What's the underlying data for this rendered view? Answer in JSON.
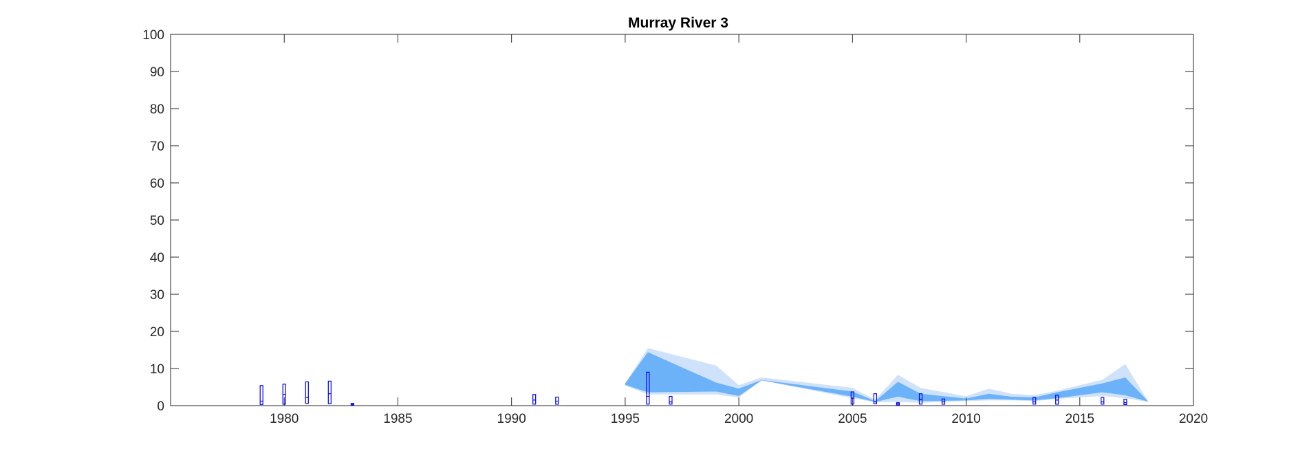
{
  "chart_data": {
    "type": "area",
    "title": "Murray River 3",
    "xlabel": "",
    "ylabel": "",
    "xlim": [
      1975,
      2020
    ],
    "ylim": [
      0,
      100
    ],
    "xticks": [
      1980,
      1985,
      1990,
      1995,
      2000,
      2005,
      2010,
      2015,
      2020
    ],
    "yticks": [
      0,
      10,
      20,
      30,
      40,
      50,
      60,
      70,
      80,
      90,
      100
    ],
    "grid": false,
    "legend": "none",
    "colors": {
      "outer_band": "#cfe2fb",
      "inner_band": "#6cb2f8",
      "boxes": "#0000ff",
      "axes": "#262626"
    },
    "bands": {
      "x": [
        1995,
        1996,
        1999,
        2000,
        2001,
        2005,
        2006,
        2007,
        2008,
        2010,
        2011,
        2012,
        2013,
        2014,
        2016,
        2017,
        2018
      ],
      "outer_upper": [
        6.0,
        15.5,
        10.8,
        5.5,
        7.6,
        4.8,
        1.6,
        8.3,
        4.8,
        2.5,
        4.6,
        3.2,
        2.8,
        4.0,
        7.0,
        11.2,
        1.2
      ],
      "outer_lower": [
        5.4,
        3.0,
        3.0,
        2.2,
        6.8,
        2.0,
        0.9,
        1.0,
        0.8,
        1.2,
        1.4,
        1.4,
        1.2,
        1.8,
        2.6,
        2.0,
        1.0
      ],
      "inner_upper": [
        6.0,
        14.4,
        6.2,
        4.6,
        6.9,
        3.8,
        1.2,
        6.4,
        3.2,
        1.9,
        3.2,
        2.4,
        2.2,
        3.6,
        6.0,
        7.6,
        1.2
      ],
      "inner_lower": [
        5.6,
        3.6,
        3.8,
        2.6,
        6.8,
        2.4,
        1.0,
        2.4,
        1.2,
        1.4,
        1.8,
        1.6,
        1.4,
        2.0,
        3.6,
        2.8,
        1.1
      ]
    },
    "boxes": [
      {
        "x": 1979,
        "low": 0.3,
        "median": 1.2,
        "high": 5.4
      },
      {
        "x": 1980,
        "low": 0.4,
        "median": 3.0,
        "high": 5.8
      },
      {
        "x": 1981,
        "low": 0.6,
        "median": 2.2,
        "high": 6.4
      },
      {
        "x": 1982,
        "low": 0.5,
        "median": 3.2,
        "high": 6.6
      },
      {
        "x": 1983,
        "low": 0.2,
        "median": 0.4,
        "high": 0.6
      },
      {
        "x": 1991,
        "low": 0.4,
        "median": 1.5,
        "high": 3.0
      },
      {
        "x": 1992,
        "low": 0.4,
        "median": 1.2,
        "high": 2.3
      },
      {
        "x": 1996,
        "low": 0.4,
        "median": 2.5,
        "high": 9.0
      },
      {
        "x": 1997,
        "low": 0.4,
        "median": 1.0,
        "high": 2.5
      },
      {
        "x": 2005,
        "low": 0.4,
        "median": 2.0,
        "high": 3.7
      },
      {
        "x": 2006,
        "low": 0.5,
        "median": 1.0,
        "high": 3.2
      },
      {
        "x": 2007,
        "low": 0.2,
        "median": 0.5,
        "high": 0.8
      },
      {
        "x": 2008,
        "low": 0.4,
        "median": 1.6,
        "high": 3.2
      },
      {
        "x": 2009,
        "low": 0.4,
        "median": 1.0,
        "high": 1.8
      },
      {
        "x": 2013,
        "low": 0.4,
        "median": 1.0,
        "high": 2.2
      },
      {
        "x": 2014,
        "low": 0.4,
        "median": 1.5,
        "high": 2.8
      },
      {
        "x": 2016,
        "low": 0.4,
        "median": 1.0,
        "high": 2.2
      },
      {
        "x": 2017,
        "low": 0.3,
        "median": 0.8,
        "high": 1.7
      }
    ]
  }
}
